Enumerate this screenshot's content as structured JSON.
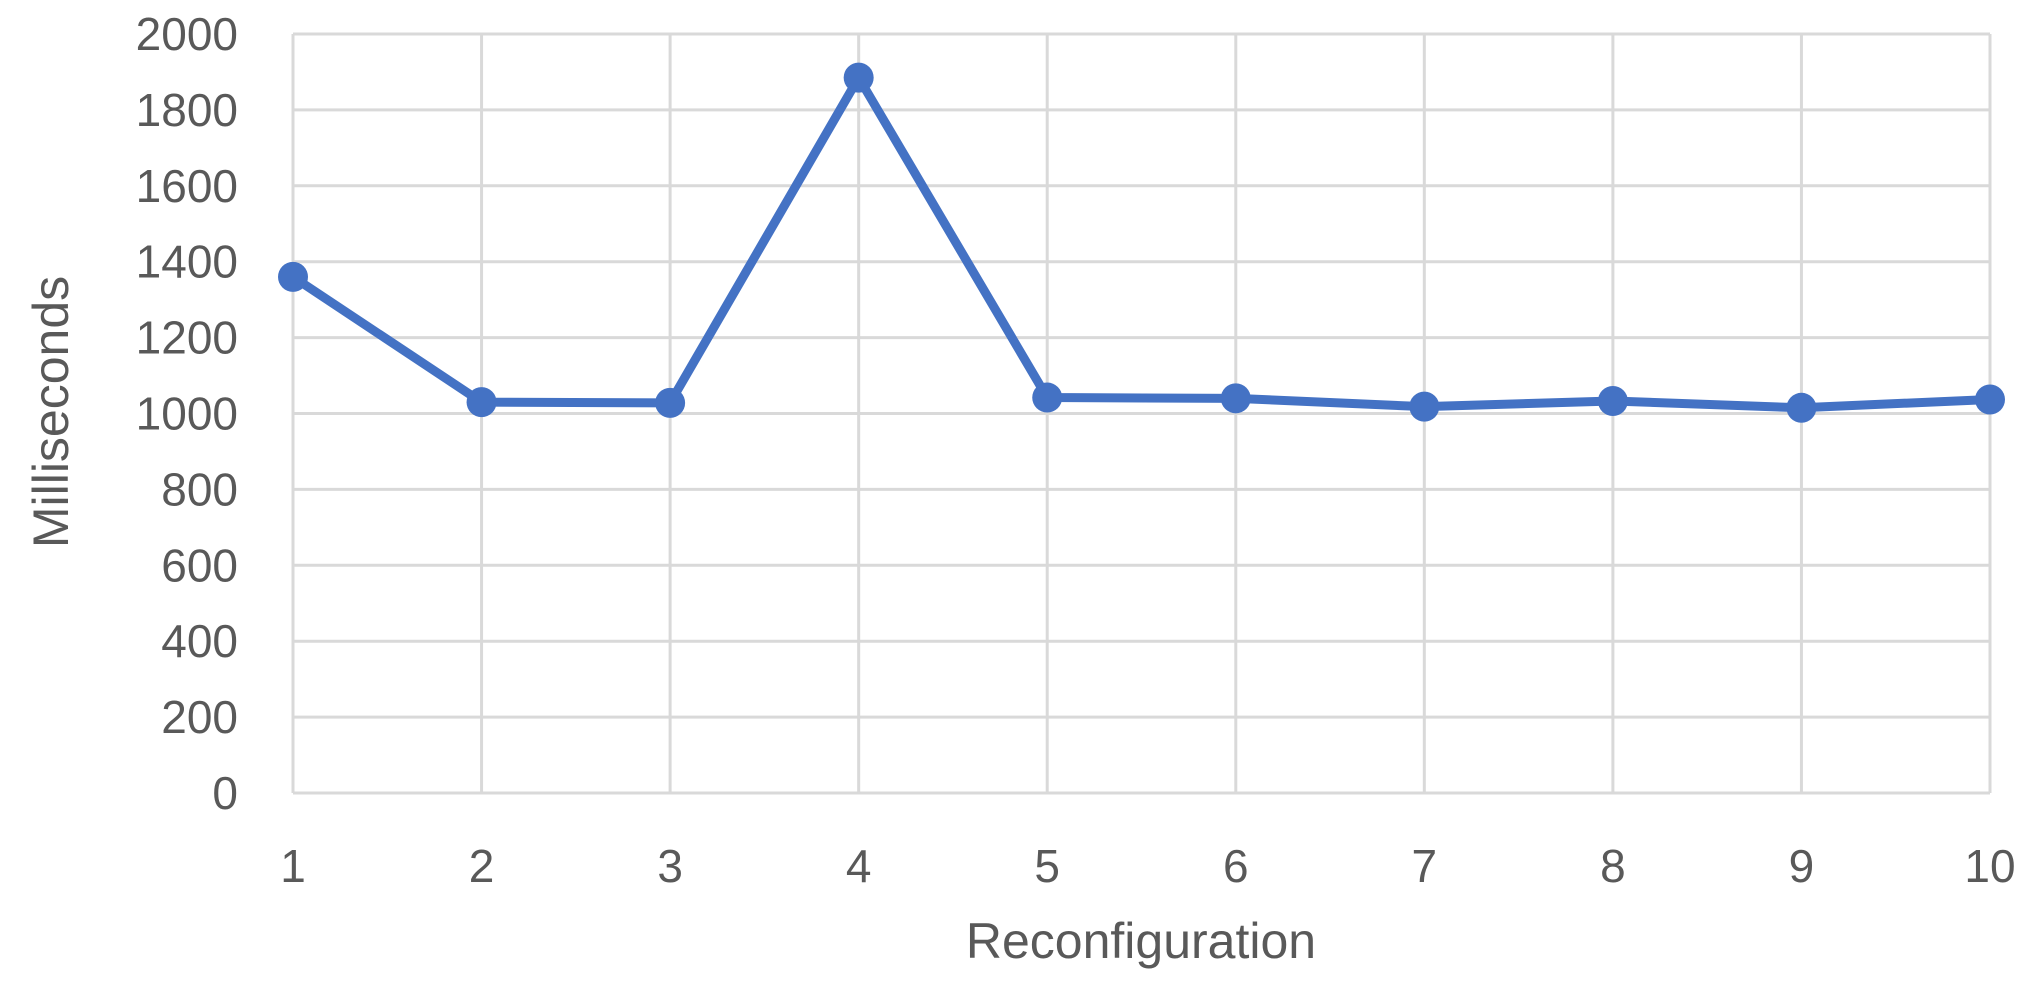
{
  "chart_data": {
    "type": "line",
    "title": "",
    "xlabel": "Reconfiguration",
    "ylabel": "Milliseconds",
    "categories": [
      "1",
      "2",
      "3",
      "4",
      "5",
      "6",
      "7",
      "8",
      "9",
      "10"
    ],
    "y_ticks": [
      "0",
      "200",
      "400",
      "600",
      "800",
      "1000",
      "1200",
      "1400",
      "1600",
      "1800",
      "2000"
    ],
    "ylim": [
      0,
      2000
    ],
    "grid": true,
    "legend": "none",
    "series": [
      {
        "values": [
          1360,
          1030,
          1028,
          1885,
          1042,
          1040,
          1018,
          1033,
          1015,
          1037
        ],
        "color": "#4472c4",
        "marker": "circle"
      }
    ]
  }
}
